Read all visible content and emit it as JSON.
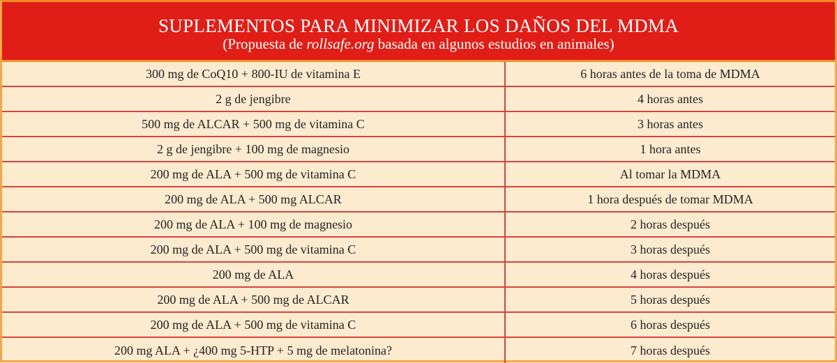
{
  "header": {
    "title": "SUPLEMENTOS PARA MINIMIZAR LOS DAÑOS DEL MDMA",
    "subtitle_prefix": "(Propuesta de ",
    "subtitle_italic": "rollsafe.org",
    "subtitle_suffix": " basada en algunos estudios en animales)"
  },
  "colors": {
    "header_bg": "#e01e17",
    "cell_bg": "#fdebd0",
    "grid_line": "#d9423b",
    "frame": "#f5a54a"
  },
  "rows": [
    {
      "supplement": "300 mg de CoQ10 + 800-IU de vitamina E",
      "timing": "6 horas antes de la toma de MDMA"
    },
    {
      "supplement": "2 g de jengibre",
      "timing": "4 horas antes"
    },
    {
      "supplement": "500 mg de ALCAR + 500 mg de vitamina C",
      "timing": "3 horas antes"
    },
    {
      "supplement": "2 g de jengibre + 100 mg de magnesio",
      "timing": "1 hora antes"
    },
    {
      "supplement": "200 mg de ALA + 500 mg de vitamina C",
      "timing": "Al tomar la MDMA"
    },
    {
      "supplement": "200 mg de ALA + 500 mg ALCAR",
      "timing": "1 hora después de tomar MDMA"
    },
    {
      "supplement": "200 mg de ALA + 100 mg de magnesio",
      "timing": "2 horas después"
    },
    {
      "supplement": "200 mg de ALA + 500 mg de vitamina C",
      "timing": "3 horas después"
    },
    {
      "supplement": "200 mg de ALA",
      "timing": "4 horas después"
    },
    {
      "supplement": "200 mg de ALA + 500 mg de ALCAR",
      "timing": "5 horas después"
    },
    {
      "supplement": "200 mg de ALA + 500 mg de vitamina C",
      "timing": "6 horas después"
    },
    {
      "supplement": "200 mg ALA + ¿400 mg 5-HTP + 5 mg de melatonina?",
      "timing": "7 horas después"
    }
  ]
}
